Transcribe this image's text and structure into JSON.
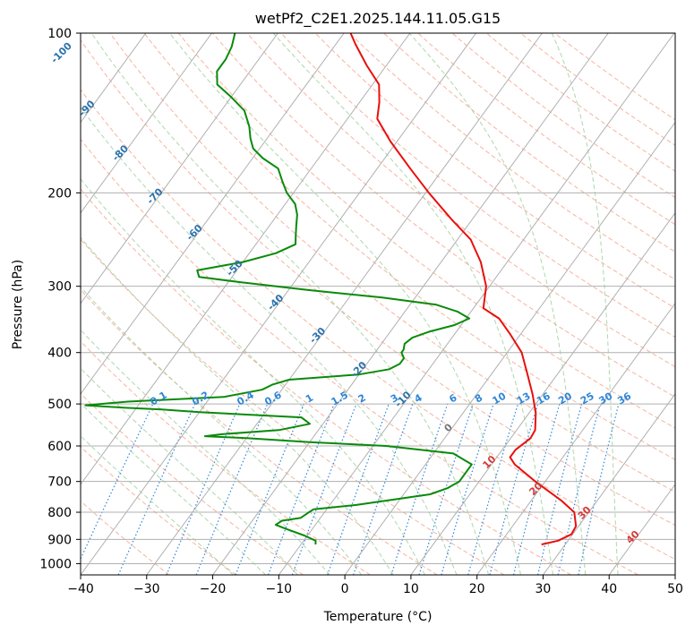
{
  "chart_data": {
    "type": "line",
    "subtype": "skew-t log-p diagram",
    "title": "wetPf2_C2E1.2025.144.11.05.G15",
    "xlabel": "Temperature (°C)",
    "ylabel": "Pressure (hPa)",
    "xlim": [
      -40,
      50
    ],
    "ylim": [
      1050,
      100
    ],
    "y_scale": "log",
    "x_ticks": [
      -40,
      -30,
      -20,
      -10,
      0,
      10,
      20,
      30,
      40,
      50
    ],
    "x_tick_labels": [
      "−40",
      "−30",
      "−20",
      "−10",
      "0",
      "10",
      "20",
      "30",
      "40",
      "50"
    ],
    "y_ticks": [
      100,
      200,
      300,
      400,
      500,
      600,
      700,
      800,
      900,
      1000
    ],
    "y_tick_labels": [
      "100",
      "200",
      "300",
      "400",
      "500",
      "600",
      "700",
      "800",
      "900",
      "1000"
    ],
    "grid": true,
    "colors": {
      "temperature": "#e8100c",
      "dewpoint": "#0a8a0a",
      "isotherm": "#333333",
      "dry_adiabat": "#f5a08a",
      "moist_adiabat": "#9fd09f",
      "mixing_ratio": "#2f86d8",
      "wet_bulb_label": "#2a73ae",
      "hot_label": "#d63b3b",
      "zero_label": "#777777"
    },
    "series": [
      {
        "role": "temperature",
        "points": [
          {
            "p": 920,
            "t": 26.4
          },
          {
            "p": 905,
            "t": 28.5
          },
          {
            "p": 880,
            "t": 29.8
          },
          {
            "p": 850,
            "t": 29.6
          },
          {
            "p": 800,
            "t": 27.8
          },
          {
            "p": 760,
            "t": 24.5
          },
          {
            "p": 700,
            "t": 18.5
          },
          {
            "p": 650,
            "t": 13.5
          },
          {
            "p": 630,
            "t": 12.0
          },
          {
            "p": 610,
            "t": 12.0
          },
          {
            "p": 580,
            "t": 13.0
          },
          {
            "p": 560,
            "t": 12.8
          },
          {
            "p": 520,
            "t": 11.0
          },
          {
            "p": 480,
            "t": 8.5
          },
          {
            "p": 440,
            "t": 5.5
          },
          {
            "p": 400,
            "t": 2.2
          },
          {
            "p": 370,
            "t": -1.5
          },
          {
            "p": 345,
            "t": -5.0
          },
          {
            "p": 330,
            "t": -8.5
          },
          {
            "p": 300,
            "t": -10.5
          },
          {
            "p": 270,
            "t": -14.0
          },
          {
            "p": 245,
            "t": -18.0
          },
          {
            "p": 225,
            "t": -23.0
          },
          {
            "p": 200,
            "t": -29.5
          },
          {
            "p": 180,
            "t": -35.0
          },
          {
            "p": 160,
            "t": -41.0
          },
          {
            "p": 145,
            "t": -45.5
          },
          {
            "p": 135,
            "t": -47.0
          },
          {
            "p": 125,
            "t": -49.0
          },
          {
            "p": 115,
            "t": -53.0
          },
          {
            "p": 105,
            "t": -57.0
          },
          {
            "p": 100,
            "t": -59.0
          }
        ]
      },
      {
        "role": "dewpoint",
        "points": [
          {
            "p": 920,
            "t": -7.8
          },
          {
            "p": 905,
            "t": -8.2
          },
          {
            "p": 885,
            "t": -10.5
          },
          {
            "p": 860,
            "t": -14.0
          },
          {
            "p": 845,
            "t": -16.0
          },
          {
            "p": 830,
            "t": -15.5
          },
          {
            "p": 820,
            "t": -13.0
          },
          {
            "p": 805,
            "t": -12.5
          },
          {
            "p": 790,
            "t": -12.0
          },
          {
            "p": 775,
            "t": -6.0
          },
          {
            "p": 740,
            "t": 4.0
          },
          {
            "p": 720,
            "t": 6.0
          },
          {
            "p": 700,
            "t": 7.0
          },
          {
            "p": 680,
            "t": 7.0
          },
          {
            "p": 650,
            "t": 7.0
          },
          {
            "p": 620,
            "t": 3.0
          },
          {
            "p": 600,
            "t": -8.0
          },
          {
            "p": 590,
            "t": -20.0
          },
          {
            "p": 580,
            "t": -30.0
          },
          {
            "p": 575,
            "t": -36.5
          },
          {
            "p": 570,
            "t": -34.0
          },
          {
            "p": 560,
            "t": -26.0
          },
          {
            "p": 545,
            "t": -22.0
          },
          {
            "p": 530,
            "t": -24.0
          },
          {
            "p": 518,
            "t": -40.0
          },
          {
            "p": 512,
            "t": -46.0
          },
          {
            "p": 508,
            "t": -52.0
          },
          {
            "p": 503,
            "t": -58.0
          },
          {
            "p": 495,
            "t": -52.0
          },
          {
            "p": 485,
            "t": -38.0
          },
          {
            "p": 470,
            "t": -33.0
          },
          {
            "p": 460,
            "t": -32.0
          },
          {
            "p": 450,
            "t": -30.0
          },
          {
            "p": 440,
            "t": -20.0
          },
          {
            "p": 430,
            "t": -16.0
          },
          {
            "p": 420,
            "t": -15.0
          },
          {
            "p": 410,
            "t": -15.0
          },
          {
            "p": 400,
            "t": -16.0
          },
          {
            "p": 395,
            "t": -16.0
          },
          {
            "p": 385,
            "t": -16.5
          },
          {
            "p": 375,
            "t": -16.0
          },
          {
            "p": 365,
            "t": -14.0
          },
          {
            "p": 355,
            "t": -11.0
          },
          {
            "p": 345,
            "t": -9.5
          },
          {
            "p": 335,
            "t": -12.0
          },
          {
            "p": 325,
            "t": -16.0
          },
          {
            "p": 315,
            "t": -25.0
          },
          {
            "p": 305,
            "t": -37.0
          },
          {
            "p": 295,
            "t": -48.0
          },
          {
            "p": 288,
            "t": -55.0
          },
          {
            "p": 280,
            "t": -56.0
          },
          {
            "p": 270,
            "t": -50.0
          },
          {
            "p": 260,
            "t": -46.0
          },
          {
            "p": 250,
            "t": -44.0
          },
          {
            "p": 240,
            "t": -45.0
          },
          {
            "p": 230,
            "t": -46.0
          },
          {
            "p": 220,
            "t": -47.0
          },
          {
            "p": 210,
            "t": -48.5
          },
          {
            "p": 200,
            "t": -51.0
          },
          {
            "p": 190,
            "t": -53.0
          },
          {
            "p": 180,
            "t": -55.0
          },
          {
            "p": 172,
            "t": -58.5
          },
          {
            "p": 165,
            "t": -61.0
          },
          {
            "p": 158,
            "t": -62.5
          },
          {
            "p": 150,
            "t": -64.0
          },
          {
            "p": 140,
            "t": -66.5
          },
          {
            "p": 132,
            "t": -70.0
          },
          {
            "p": 125,
            "t": -73.5
          },
          {
            "p": 118,
            "t": -75.0
          },
          {
            "p": 112,
            "t": -75.0
          },
          {
            "p": 106,
            "t": -75.5
          },
          {
            "p": 100,
            "t": -76.5
          }
        ]
      }
    ],
    "mixing_ratio_labels": [
      "0.1",
      "0.2",
      "0.4",
      "0.6",
      "1",
      "1.5",
      "2",
      "3",
      "4",
      "6",
      "8",
      "10",
      "13",
      "16",
      "20",
      "25",
      "30",
      "36"
    ],
    "wet_bulb_labels": [
      "-100",
      "-90",
      "-80",
      "-70",
      "-60",
      "-50",
      "-40",
      "-30",
      "-20",
      "-10"
    ],
    "zero_label": "0",
    "hot_labels": [
      "10",
      "20",
      "30",
      "40"
    ]
  }
}
